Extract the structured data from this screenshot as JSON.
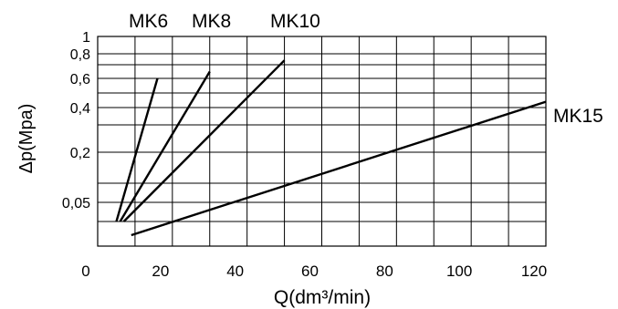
{
  "chart_data": {
    "type": "line",
    "title": "",
    "xlabel": "Q(dm³/min)",
    "ylabel": "Δp(Mpa)",
    "xlim": [
      0,
      120
    ],
    "x_ticks": [
      {
        "value": 0,
        "label": "0"
      },
      {
        "value": 20,
        "label": "20"
      },
      {
        "value": 40,
        "label": "40"
      },
      {
        "value": 60,
        "label": "60"
      },
      {
        "value": 80,
        "label": "80"
      },
      {
        "value": 100,
        "label": "100"
      },
      {
        "value": 120,
        "label": "120"
      }
    ],
    "y_scale": "nonlinear",
    "y_ticks": [
      {
        "value": 1,
        "label": "1"
      },
      {
        "value": 0.8,
        "label": "0,8"
      },
      {
        "value": 0.6,
        "label": "0,6"
      },
      {
        "value": 0.4,
        "label": "0,4"
      },
      {
        "value": 0.2,
        "label": "0,2"
      },
      {
        "value": 0.05,
        "label": "0,05"
      }
    ],
    "y_gridlines": [
      1,
      0.8,
      0.7,
      0.6,
      0.5,
      0.4,
      0.3,
      0.2,
      0.1,
      0.05,
      0.03,
      0
    ],
    "x_gridlines": [
      0,
      10,
      20,
      30,
      40,
      50,
      60,
      70,
      80,
      90,
      100,
      110,
      120
    ],
    "grid": true,
    "series": [
      {
        "name": "MK6",
        "x": [
          5,
          16
        ],
        "y": [
          0.03,
          0.6
        ]
      },
      {
        "name": "MK8",
        "x": [
          6,
          30
        ],
        "y": [
          0.03,
          0.65
        ]
      },
      {
        "name": "MK10",
        "x": [
          7,
          50
        ],
        "y": [
          0.03,
          0.74
        ]
      },
      {
        "name": "MK15",
        "x": [
          9,
          120
        ],
        "y": [
          0.02,
          0.44
        ]
      }
    ]
  }
}
